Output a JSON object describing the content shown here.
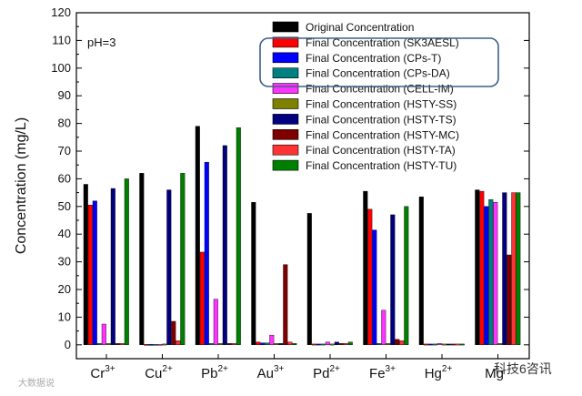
{
  "chart_data": {
    "type": "bar",
    "ylabel": "Concentration (mg/L)",
    "ylim": [
      -5,
      120
    ],
    "yticks": [
      0,
      10,
      20,
      30,
      40,
      50,
      60,
      70,
      80,
      90,
      100,
      110,
      120
    ],
    "annotation": "pH=3",
    "categories": [
      {
        "base": "Cr",
        "sup": "3+"
      },
      {
        "base": "Cu",
        "sup": "2+"
      },
      {
        "base": "Pb",
        "sup": "2+"
      },
      {
        "base": "Au",
        "sup": "3+"
      },
      {
        "base": "Pd",
        "sup": "2+"
      },
      {
        "base": "Fe",
        "sup": "3+"
      },
      {
        "base": "Hg",
        "sup": "2+"
      },
      {
        "base": "Mg",
        "sup": ""
      }
    ],
    "series": [
      {
        "name": "Original Concentration",
        "color": "#000000",
        "values": [
          58,
          62,
          79,
          51.5,
          47.5,
          55.5,
          53.5,
          56
        ]
      },
      {
        "name": "Final Concentration (SK3AESL)",
        "color": "#ff0000",
        "values": [
          50.5,
          0.2,
          33.5,
          1,
          0.3,
          49,
          0.3,
          55.5
        ]
      },
      {
        "name": "Final Concentration (CPs-T)",
        "color": "#0000ff",
        "values": [
          52,
          0.2,
          66,
          0.7,
          0.3,
          41.5,
          0.3,
          50
        ]
      },
      {
        "name": "Final Concentration (CPs-DA)",
        "color": "#008080",
        "values": [
          0.5,
          0.2,
          0.5,
          0.7,
          0.3,
          0.5,
          0.3,
          52.5
        ]
      },
      {
        "name": "Final Concentration (CELL-IM)",
        "color": "#ff33ff",
        "values": [
          7.5,
          0.2,
          16.5,
          3.5,
          1,
          12.5,
          0.5,
          51.5
        ]
      },
      {
        "name": "Final Concentration (HSTY-SS)",
        "color": "#808000",
        "values": [
          0.5,
          0.3,
          0.5,
          0.5,
          0.3,
          0.5,
          0.3,
          0.5
        ]
      },
      {
        "name": "Final Concentration (HSTY-TS)",
        "color": "#000080",
        "values": [
          56.5,
          56,
          72,
          0.5,
          1,
          47,
          0.3,
          55
        ]
      },
      {
        "name": "Final Concentration (HSTY-MC)",
        "color": "#800000",
        "values": [
          0.5,
          8.5,
          0.5,
          29,
          0.5,
          2,
          0.3,
          32.5
        ]
      },
      {
        "name": "Final Concentration (HSTY-TA)",
        "color": "#ff3333",
        "values": [
          0.5,
          1.5,
          0.5,
          1,
          0.5,
          1.5,
          0.3,
          55
        ]
      },
      {
        "name": "Final Concentration (HSTY-TU)",
        "color": "#008000",
        "values": [
          60,
          62,
          78.5,
          0.5,
          1,
          50,
          0.3,
          55
        ]
      }
    ]
  },
  "watermarks": {
    "left": "大数据说",
    "right": "科技6咨讯"
  }
}
